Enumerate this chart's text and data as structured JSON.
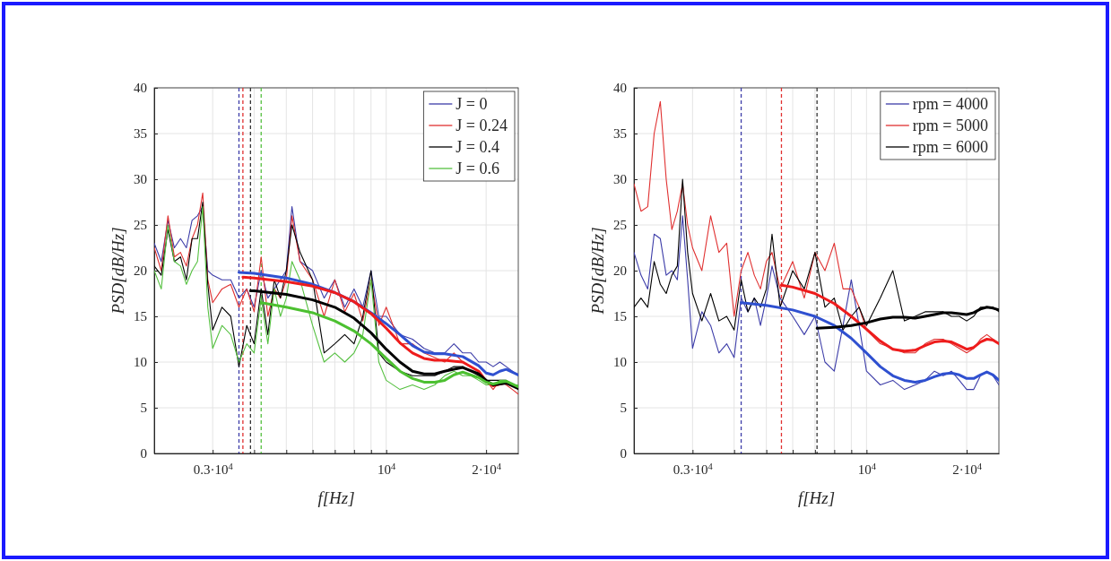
{
  "chart_data": [
    {
      "type": "line",
      "xlabel": "f[Hz]",
      "ylabel": "PSD[dB/Hz]",
      "log": "x",
      "xlim": [
        2000,
        25000
      ],
      "ylim": [
        0,
        40
      ],
      "xticks": [
        {
          "value": 3000,
          "label": "0.3·10$^{4}$"
        },
        {
          "value": 4000,
          "label": null
        },
        {
          "value": 5000,
          "label": null
        },
        {
          "value": 6000,
          "label": null
        },
        {
          "value": 7000,
          "label": null
        },
        {
          "value": 8000,
          "label": null
        },
        {
          "value": 9000,
          "label": null
        },
        {
          "value": 10000,
          "label": "10$^{4}$"
        },
        {
          "value": 20000,
          "label": "2·10$^{4}$"
        }
      ],
      "yticks": [
        0,
        5,
        10,
        15,
        20,
        25,
        30,
        35,
        40
      ],
      "grid": true,
      "legend": "top right",
      "x": [
        2000,
        2100,
        2200,
        2300,
        2400,
        2500,
        2600,
        2700,
        2800,
        2900,
        3000,
        3200,
        3400,
        3600,
        3800,
        4000,
        4200,
        4400,
        4600,
        4800,
        5000,
        5200,
        5500,
        6000,
        6500,
        7000,
        7500,
        8000,
        8500,
        9000,
        9500,
        10000,
        11000,
        12000,
        13000,
        14000,
        15000,
        16000,
        17000,
        18000,
        19000,
        20000,
        21000,
        22000,
        23000,
        24000,
        25000
      ],
      "ref_lines": [
        {
          "axis": "x",
          "value": 3600,
          "color": "#3c3ca8",
          "line_style": "dashed"
        },
        {
          "axis": "x",
          "value": 3700,
          "color": "#e03030",
          "line_style": "dashed"
        },
        {
          "axis": "x",
          "value": 3900,
          "color": "#333333",
          "line_style": "dashed"
        },
        {
          "axis": "x",
          "value": 4200,
          "color": "#55c040",
          "line_style": "dashed"
        }
      ],
      "series": [
        {
          "name": "J = 0",
          "color": "#3c3ca8",
          "values": [
            23,
            21,
            25.5,
            22.5,
            23.5,
            22.5,
            25.5,
            26,
            27,
            20,
            19.5,
            19,
            19,
            17,
            18,
            16,
            20,
            17,
            18,
            19,
            20,
            27,
            21,
            20,
            17,
            19,
            16,
            18,
            16,
            20,
            15,
            15,
            13,
            12.5,
            11.5,
            11,
            11,
            12,
            11,
            11,
            10,
            10,
            9.5,
            10,
            9.5,
            9,
            8.5
          ]
        },
        {
          "name": "J = 0.24",
          "color": "#e03030",
          "values": [
            22.5,
            20,
            26,
            21.5,
            22,
            20.5,
            23.5,
            25,
            28.5,
            19,
            16.5,
            18,
            18.5,
            16,
            18,
            15.5,
            21.5,
            15,
            18,
            17,
            19,
            26,
            21,
            19,
            15,
            19,
            15.5,
            17.5,
            14.5,
            19,
            14,
            16,
            12,
            12,
            11,
            10.5,
            10,
            11,
            10,
            9.5,
            9,
            8,
            7,
            8,
            7.5,
            7,
            6.5
          ]
        },
        {
          "name": "J = 0.4",
          "color": "#000000",
          "values": [
            20.5,
            19.5,
            24.5,
            21,
            21.5,
            19,
            23.5,
            23.5,
            27.5,
            18.5,
            13.5,
            16,
            15,
            9.5,
            14,
            12,
            18,
            13,
            19,
            17,
            20,
            25,
            22,
            19,
            11,
            12,
            13,
            12,
            15,
            20,
            11,
            10,
            9,
            8.5,
            8.5,
            8.5,
            9,
            9.5,
            9.5,
            9,
            8.5,
            8,
            8,
            8,
            8,
            7.5,
            7.5
          ]
        },
        {
          "name": "J = 0.6",
          "color": "#55c040",
          "values": [
            20,
            18,
            25,
            21,
            20.5,
            18.5,
            20,
            21,
            27,
            16,
            11.5,
            14,
            13,
            10,
            12,
            11,
            17,
            12,
            18,
            15,
            17,
            21,
            19,
            14,
            10,
            11,
            10,
            11,
            13,
            19,
            10,
            8,
            7,
            7.5,
            7,
            7.5,
            8.5,
            9,
            8.5,
            8.5,
            8,
            7.5,
            7.5,
            8,
            8,
            7.5,
            7.5
          ]
        },
        {
          "color": "#2f50d0",
          "x": [
            3600,
            4000,
            5000,
            6000,
            7000,
            8000,
            9000,
            10000,
            11000,
            12000,
            13000,
            14000,
            15000,
            17000,
            19000,
            20000,
            21000,
            22000,
            23000,
            25000
          ],
          "values": [
            19.8,
            19.7,
            19.2,
            18.5,
            17.6,
            16.6,
            15.4,
            14.2,
            13,
            11.8,
            11.1,
            10.9,
            10.9,
            10.6,
            9.6,
            8.8,
            8.6,
            9,
            9.2,
            8.6
          ]
        },
        {
          "color": "#ee1c1c",
          "x": [
            3700,
            4000,
            5000,
            6000,
            7000,
            8000,
            9000,
            10000,
            11000,
            12000,
            13000,
            14000,
            15000,
            17000,
            19000,
            20000,
            21000,
            22000,
            23000,
            25000
          ],
          "values": [
            19.3,
            19.2,
            18.8,
            18.3,
            17.6,
            16.6,
            15.3,
            13.7,
            12.1,
            11,
            10.4,
            10.2,
            10.2,
            10,
            9,
            7.9,
            7.4,
            7.6,
            7.8,
            7.2
          ]
        },
        {
          "color": "#000000",
          "x": [
            3900,
            4000,
            5000,
            6000,
            7000,
            8000,
            9000,
            10000,
            11000,
            12000,
            13000,
            14000,
            15000,
            17000,
            19000,
            20000,
            21000,
            22000,
            23000,
            25000
          ],
          "values": [
            17.8,
            17.8,
            17.4,
            16.8,
            16,
            14.8,
            13.2,
            11.4,
            10,
            9,
            8.7,
            8.7,
            9,
            9.4,
            8.7,
            8,
            7.5,
            7.6,
            7.7,
            7.1
          ]
        },
        {
          "color": "#4cc030",
          "x": [
            4200,
            5000,
            6000,
            7000,
            8000,
            9000,
            10000,
            11000,
            12000,
            13000,
            14000,
            15000,
            16000,
            17000,
            19000,
            20000,
            21000,
            22000,
            23000,
            25000
          ],
          "values": [
            16.5,
            16,
            15.4,
            14.5,
            13.4,
            12,
            10.4,
            9,
            8.2,
            7.8,
            7.8,
            8,
            8.6,
            8.9,
            8.3,
            7.8,
            7.6,
            7.8,
            7.9,
            7.3
          ]
        }
      ]
    },
    {
      "type": "line",
      "xlabel": "f[Hz]",
      "ylabel": "PSD[dB/Hz]",
      "log": "x",
      "xlim": [
        2000,
        25000
      ],
      "ylim": [
        0,
        40
      ],
      "xticks": [
        {
          "value": 3000,
          "label": "0.3·10$^{4}$"
        },
        {
          "value": 4000,
          "label": null
        },
        {
          "value": 5000,
          "label": null
        },
        {
          "value": 6000,
          "label": null
        },
        {
          "value": 7000,
          "label": null
        },
        {
          "value": 8000,
          "label": null
        },
        {
          "value": 9000,
          "label": null
        },
        {
          "value": 10000,
          "label": "10$^{4}$"
        },
        {
          "value": 20000,
          "label": "2·10$^{4}$"
        }
      ],
      "yticks": [
        0,
        5,
        10,
        15,
        20,
        25,
        30,
        35,
        40
      ],
      "grid": true,
      "legend": "top right",
      "x": [
        2000,
        2100,
        2200,
        2300,
        2400,
        2500,
        2600,
        2700,
        2800,
        2900,
        3000,
        3200,
        3400,
        3600,
        3800,
        4000,
        4200,
        4400,
        4600,
        4800,
        5000,
        5200,
        5500,
        6000,
        6500,
        7000,
        7500,
        8000,
        8500,
        9000,
        9500,
        10000,
        11000,
        12000,
        13000,
        14000,
        15000,
        16000,
        17000,
        18000,
        19000,
        20000,
        21000,
        22000,
        23000,
        24000,
        25000
      ],
      "ref_lines": [
        {
          "axis": "x",
          "value": 4200,
          "color": "#3c3ca8",
          "line_style": "dashed"
        },
        {
          "axis": "x",
          "value": 5550,
          "color": "#e03030",
          "line_style": "dashed"
        },
        {
          "axis": "x",
          "value": 7100,
          "color": "#333333",
          "line_style": "dashed"
        }
      ],
      "series": [
        {
          "name": "rpm = 4000",
          "color": "#3c3ca8",
          "values": [
            22,
            19.5,
            18,
            24,
            23.5,
            19.5,
            20,
            19,
            26,
            19,
            11.5,
            15.5,
            14,
            11,
            12,
            10.5,
            17,
            15.5,
            17,
            14,
            17,
            20.5,
            17,
            15,
            13,
            15,
            10,
            9,
            14,
            19,
            14,
            9,
            7.5,
            8,
            7,
            7.5,
            8,
            9,
            8.5,
            9,
            8,
            7,
            7,
            8.5,
            9,
            8.5,
            7.5
          ]
        },
        {
          "name": "rpm = 5000",
          "color": "#e03030",
          "values": [
            29.5,
            26.5,
            27,
            35,
            38.5,
            30,
            24.5,
            26.5,
            29.5,
            25,
            22.5,
            20,
            26,
            22,
            23,
            15,
            20,
            22,
            19.5,
            18,
            21,
            22,
            18,
            21,
            17,
            22,
            20,
            23,
            18,
            18,
            16,
            13.5,
            12,
            11.5,
            11,
            11,
            12,
            12.5,
            12.5,
            12,
            11.5,
            11,
            11.5,
            12.5,
            13,
            12.5,
            12
          ]
        },
        {
          "name": "rpm = 6000",
          "color": "#000000",
          "values": [
            16,
            17,
            16,
            21,
            18.5,
            17.5,
            19.5,
            20.5,
            30,
            22,
            17.5,
            14.5,
            17.5,
            14.5,
            15,
            13.5,
            19,
            15.5,
            17,
            16,
            18,
            24,
            16,
            20,
            18,
            22,
            16,
            17,
            13.5,
            15,
            16,
            14,
            17,
            20,
            14.5,
            15,
            15.5,
            15.5,
            15.5,
            15,
            15,
            14.5,
            15,
            16,
            16,
            16,
            15.5
          ]
        },
        {
          "color": "#2f50d0",
          "x": [
            4200,
            5000,
            6000,
            7000,
            8000,
            9000,
            10000,
            11000,
            12000,
            13000,
            14000,
            15000,
            16000,
            17000,
            18000,
            19000,
            20000,
            21000,
            22000,
            23000,
            24000,
            25000
          ],
          "values": [
            16.5,
            16.2,
            15.7,
            15,
            14,
            12.6,
            11,
            9.5,
            8.5,
            8,
            7.8,
            8,
            8.4,
            8.7,
            8.8,
            8.6,
            8.2,
            8.2,
            8.6,
            8.9,
            8.6,
            8
          ]
        },
        {
          "color": "#ee1c1c",
          "x": [
            5550,
            6000,
            7000,
            8000,
            9000,
            10000,
            11000,
            12000,
            13000,
            14000,
            15000,
            16000,
            17000,
            18000,
            19000,
            20000,
            21000,
            22000,
            23000,
            24000,
            25000
          ],
          "values": [
            18.4,
            18.2,
            17.5,
            16.4,
            15,
            13.6,
            12.3,
            11.4,
            11.2,
            11.3,
            11.8,
            12.2,
            12.3,
            12.2,
            11.8,
            11.4,
            11.6,
            12.2,
            12.5,
            12.4,
            12
          ]
        },
        {
          "color": "#000000",
          "x": [
            7100,
            8000,
            9000,
            10000,
            11000,
            12000,
            13000,
            14000,
            15000,
            16000,
            17000,
            18000,
            19000,
            20000,
            21000,
            22000,
            23000,
            24000,
            25000
          ],
          "values": [
            13.7,
            13.8,
            14,
            14.3,
            14.7,
            14.9,
            14.9,
            14.8,
            15,
            15.2,
            15.4,
            15.4,
            15.3,
            15.2,
            15.4,
            15.8,
            16,
            15.9,
            15.7
          ]
        }
      ]
    }
  ]
}
